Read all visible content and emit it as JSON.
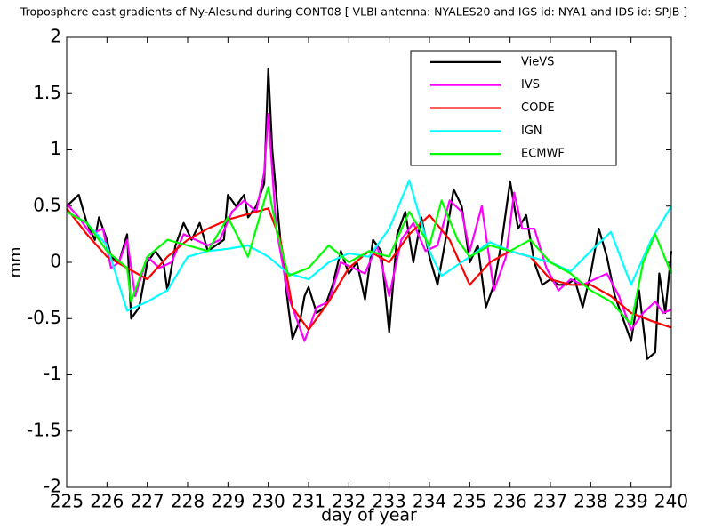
{
  "chart_data": {
    "type": "line",
    "title": "Troposphere east gradients of Ny-Alesund during CONT08 [ VLBI antenna: NYALES20 and IGS id: NYA1 and IDS id: SPJB ]",
    "xlabel": "day of year",
    "ylabel": "mm",
    "xlim": [
      225,
      240
    ],
    "ylim": [
      -2,
      2
    ],
    "xticks": [
      225,
      226,
      227,
      228,
      229,
      230,
      231,
      232,
      233,
      234,
      235,
      236,
      237,
      238,
      239,
      240
    ],
    "yticks": [
      -2,
      -1.5,
      -1,
      -0.5,
      0,
      0.5,
      1,
      1.5,
      2
    ],
    "legend": "northeast",
    "series": [
      {
        "name": "VieVS",
        "color": "#000000",
        "x": [
          225,
          225.3,
          225.5,
          225.7,
          225.8,
          226.0,
          226.1,
          226.3,
          226.5,
          226.6,
          226.8,
          227.0,
          227.2,
          227.4,
          227.5,
          227.7,
          227.9,
          228.1,
          228.3,
          228.5,
          228.7,
          228.9,
          229.0,
          229.2,
          229.4,
          229.5,
          229.7,
          229.9,
          230.0,
          230.1,
          230.3,
          230.5,
          230.6,
          230.8,
          230.9,
          231.0,
          231.2,
          231.4,
          231.6,
          231.8,
          232.0,
          232.2,
          232.4,
          232.6,
          232.8,
          233.0,
          233.2,
          233.4,
          233.6,
          233.8,
          234.0,
          234.2,
          234.4,
          234.6,
          234.8,
          235.0,
          235.2,
          235.4,
          235.6,
          235.8,
          236.0,
          236.2,
          236.4,
          236.6,
          236.8,
          237.0,
          237.2,
          237.4,
          237.6,
          237.8,
          238.0,
          238.2,
          238.4,
          238.6,
          238.8,
          239.0,
          239.2,
          239.4,
          239.6,
          239.7,
          239.85,
          240.0
        ],
        "values": [
          0.5,
          0.6,
          0.35,
          0.2,
          0.4,
          0.2,
          0.05,
          0.0,
          0.25,
          -0.5,
          -0.4,
          0.0,
          0.1,
          0.0,
          -0.25,
          0.15,
          0.35,
          0.2,
          0.35,
          0.1,
          0.15,
          0.2,
          0.6,
          0.5,
          0.6,
          0.4,
          0.5,
          0.7,
          1.72,
          1.0,
          0.2,
          -0.4,
          -0.68,
          -0.5,
          -0.3,
          -0.22,
          -0.45,
          -0.4,
          -0.2,
          0.1,
          -0.1,
          0.0,
          -0.33,
          0.2,
          0.1,
          -0.62,
          0.25,
          0.45,
          0.0,
          0.4,
          0.05,
          -0.2,
          0.2,
          0.65,
          0.5,
          0.0,
          0.15,
          -0.4,
          -0.2,
          0.2,
          0.72,
          0.3,
          0.42,
          0.0,
          -0.2,
          -0.15,
          -0.2,
          -0.2,
          -0.15,
          -0.4,
          -0.1,
          0.3,
          0.05,
          -0.3,
          -0.5,
          -0.7,
          -0.25,
          -0.86,
          -0.8,
          -0.1,
          -0.45,
          0.1
        ]
      },
      {
        "name": "IVS",
        "color": "#ff00ff",
        "x": [
          225,
          225.3,
          225.6,
          225.9,
          226.1,
          226.3,
          226.5,
          226.7,
          227.0,
          227.3,
          227.6,
          227.9,
          228.2,
          228.5,
          228.8,
          229.1,
          229.4,
          229.7,
          229.9,
          230.0,
          230.2,
          230.5,
          230.9,
          231.2,
          231.5,
          231.8,
          232.1,
          232.4,
          232.7,
          233.0,
          233.3,
          233.6,
          233.9,
          234.2,
          234.5,
          234.8,
          235.0,
          235.3,
          235.6,
          235.9,
          236.1,
          236.3,
          236.6,
          236.9,
          237.2,
          237.5,
          237.8,
          238.1,
          238.4,
          238.7,
          239.0,
          239.3,
          239.6,
          239.8,
          240.0
        ],
        "values": [
          0.52,
          0.4,
          0.25,
          0.3,
          -0.05,
          0.0,
          0.2,
          -0.3,
          0.05,
          -0.05,
          0.0,
          0.25,
          0.2,
          0.15,
          0.2,
          0.45,
          0.55,
          0.45,
          0.8,
          1.32,
          0.3,
          -0.3,
          -0.7,
          -0.4,
          -0.35,
          0.0,
          -0.05,
          -0.1,
          0.15,
          -0.3,
          0.2,
          0.35,
          0.1,
          0.15,
          0.55,
          0.45,
          0.1,
          0.5,
          -0.25,
          0.05,
          0.62,
          0.3,
          0.3,
          -0.05,
          -0.25,
          -0.15,
          -0.2,
          -0.15,
          -0.1,
          -0.3,
          -0.6,
          -0.45,
          -0.35,
          -0.45,
          -0.42
        ]
      },
      {
        "name": "CODE",
        "color": "#ff0000",
        "x": [
          225,
          225.5,
          226,
          226.5,
          227,
          227.5,
          228,
          228.5,
          229,
          229.5,
          230,
          230.3,
          230.6,
          231,
          231.5,
          232,
          232.5,
          233,
          233.5,
          234,
          234.5,
          235,
          235.5,
          236,
          236.5,
          237,
          237.5,
          238,
          238.5,
          239,
          239.5,
          240
        ],
        "values": [
          0.48,
          0.25,
          0.05,
          -0.05,
          -0.15,
          0.05,
          0.2,
          0.3,
          0.38,
          0.43,
          0.48,
          0.2,
          -0.4,
          -0.6,
          -0.35,
          -0.05,
          0.1,
          0.0,
          0.25,
          0.42,
          0.2,
          -0.2,
          0.0,
          0.1,
          0.05,
          -0.15,
          -0.2,
          -0.2,
          -0.3,
          -0.45,
          -0.52,
          -0.58
        ]
      },
      {
        "name": "IGN",
        "color": "#00ffff",
        "x": [
          225,
          225.5,
          226,
          226.5,
          227,
          227.5,
          228,
          228.5,
          229,
          229.5,
          230,
          230.5,
          231,
          231.5,
          232,
          232.5,
          233,
          233.5,
          234,
          234.3,
          235,
          235.5,
          236,
          236.5,
          237,
          237.5,
          238,
          238.5,
          239,
          239.5,
          240
        ],
        "values": [
          0.45,
          0.35,
          0.15,
          -0.43,
          -0.35,
          -0.25,
          0.05,
          0.1,
          0.12,
          0.15,
          0.05,
          -0.1,
          -0.15,
          0.0,
          0.08,
          0.05,
          0.3,
          0.73,
          0.1,
          -0.12,
          0.05,
          0.18,
          0.1,
          0.05,
          0.0,
          -0.08,
          0.1,
          0.27,
          -0.2,
          0.2,
          0.5
        ]
      },
      {
        "name": "ECMWF",
        "color": "#00ff00",
        "x": [
          225,
          225.5,
          226,
          226.5,
          226.6,
          227,
          227.5,
          228,
          228.5,
          229,
          229.5,
          230,
          230.2,
          230.5,
          231,
          231.5,
          232,
          232.5,
          233,
          233.5,
          234,
          234.3,
          234.7,
          235,
          235.5,
          236,
          236.5,
          237,
          237.5,
          238,
          238.5,
          239,
          239.3,
          239.6,
          240
        ],
        "values": [
          0.45,
          0.35,
          0.1,
          -0.05,
          -0.35,
          0.05,
          0.2,
          0.15,
          0.1,
          0.4,
          0.05,
          0.67,
          0.3,
          -0.12,
          -0.05,
          0.15,
          0.0,
          0.1,
          0.05,
          0.45,
          0.15,
          0.55,
          0.2,
          0.05,
          0.15,
          0.1,
          0.2,
          0.0,
          -0.1,
          -0.25,
          -0.35,
          -0.55,
          0.0,
          0.25,
          -0.1
        ]
      }
    ]
  }
}
